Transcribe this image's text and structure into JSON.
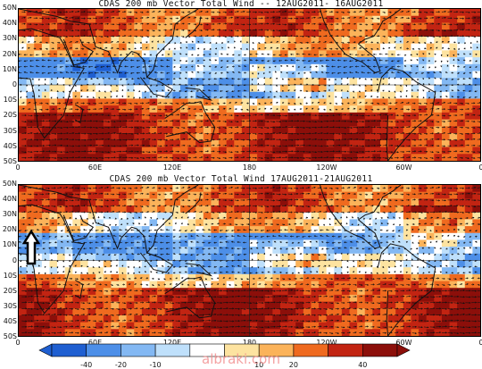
{
  "panels": [
    {
      "title": "CDAS 200 mb Vector Total Wind -- 12AUG2011- 16AUG2011"
    },
    {
      "title": "CDAS 200 mb Vector Total Wind 17AUG2011-21AUG2011"
    }
  ],
  "lat_labels": [
    "50N",
    "40N",
    "30N",
    "20N",
    "10N",
    "0",
    "10S",
    "20S",
    "30S",
    "40S",
    "50S"
  ],
  "lon_labels": [
    "0",
    "60E",
    "120E",
    "180",
    "120W",
    "60W",
    "0"
  ],
  "colorbar": {
    "labels": [
      "-40",
      "-20",
      "-10",
      "10",
      "20",
      "40"
    ],
    "colors": [
      "#1f5fd1",
      "#4d8fe8",
      "#83b8f3",
      "#bfe0fb",
      "#ffffff",
      "#fde3a0",
      "#fbb35a",
      "#ef6a1f",
      "#c22412",
      "#8c0f0a"
    ]
  },
  "watermark": "albraki.com"
}
